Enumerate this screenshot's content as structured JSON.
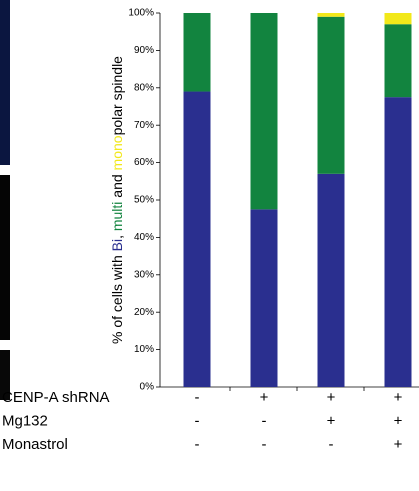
{
  "chart_data": {
    "type": "stacked-bar",
    "ylabel": [
      {
        "text": "% of cells with ",
        "color": "#000000"
      },
      {
        "text": "Bi",
        "color": "#2a2f8f"
      },
      {
        "text": ", ",
        "color": "#000000"
      },
      {
        "text": "multi",
        "color": "#12843f"
      },
      {
        "text": " and ",
        "color": "#000000"
      },
      {
        "text": "mono",
        "color": "#f2e81a"
      },
      {
        "text": "polar spindle",
        "color": "#000000"
      }
    ],
    "categories": [
      null,
      null,
      null,
      null
    ],
    "series": [
      {
        "name": "Bi",
        "color": "#2a2f8f",
        "values": [
          79,
          47.5,
          57,
          77.5
        ]
      },
      {
        "name": "multi",
        "color": "#12843f",
        "values": [
          21,
          52.5,
          42,
          19.5
        ]
      },
      {
        "name": "mono",
        "color": "#f2e81a",
        "values": [
          0,
          0,
          1,
          3
        ]
      }
    ],
    "ylim": [
      0,
      100
    ],
    "yticks": [
      {
        "value": 0,
        "label": "0%"
      },
      {
        "value": 10,
        "label": "10%"
      },
      {
        "value": 20,
        "label": "20%"
      },
      {
        "value": 30,
        "label": "30%"
      },
      {
        "value": 40,
        "label": "40%"
      },
      {
        "value": 50,
        "label": "50%"
      },
      {
        "value": 60,
        "label": "60%"
      },
      {
        "value": 70,
        "label": "70%"
      },
      {
        "value": 80,
        "label": "80%"
      },
      {
        "value": 90,
        "label": "90%"
      },
      {
        "value": 100,
        "label": "100%"
      }
    ],
    "conditions": [
      {
        "name": "CENP-A shRNA",
        "values": [
          "-",
          "+",
          "+",
          "+"
        ]
      },
      {
        "name": "Mg132",
        "values": [
          "-",
          "-",
          "+",
          "+"
        ]
      },
      {
        "name": "Monastrol",
        "values": [
          "-",
          "-",
          "-",
          "+"
        ]
      }
    ]
  }
}
